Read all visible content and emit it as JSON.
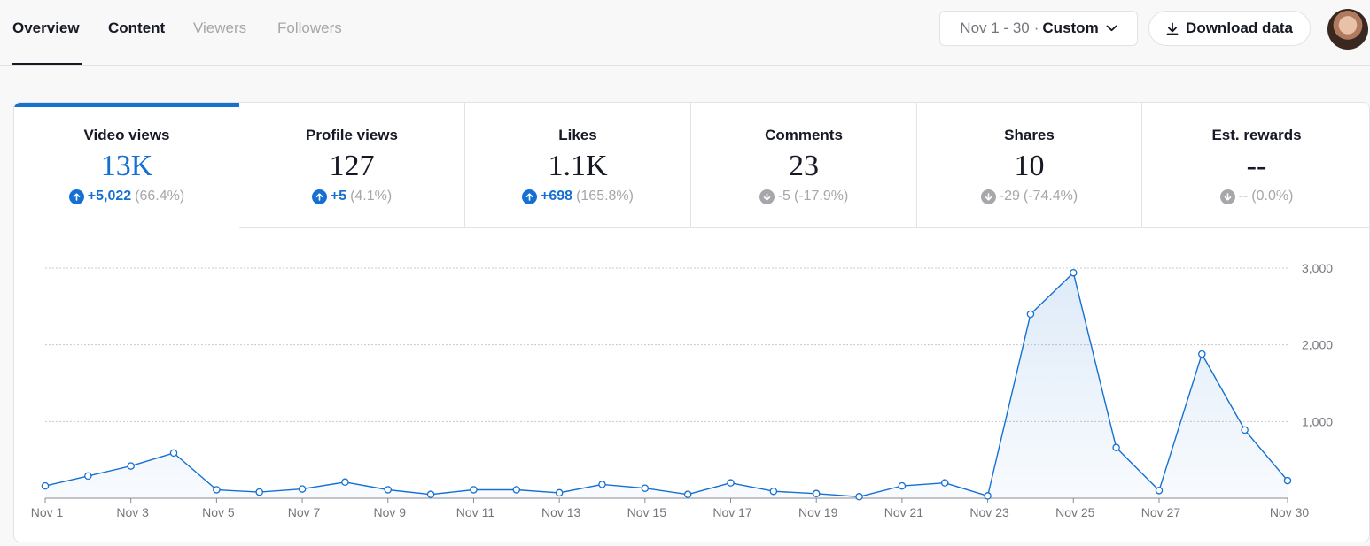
{
  "tabs": [
    {
      "label": "Overview",
      "state": "active"
    },
    {
      "label": "Content",
      "state": "normal"
    },
    {
      "label": "Viewers",
      "state": "muted"
    },
    {
      "label": "Followers",
      "state": "muted"
    }
  ],
  "date_range": {
    "dates": "Nov 1 - 30",
    "separator": "·",
    "mode": "Custom"
  },
  "download_label": "Download data",
  "metrics": [
    {
      "title": "Video views",
      "value": "13K",
      "change": "+5,022",
      "percent": "(66.4%)",
      "direction": "up",
      "active": true
    },
    {
      "title": "Profile views",
      "value": "127",
      "change": "+5",
      "percent": "(4.1%)",
      "direction": "up",
      "active": false
    },
    {
      "title": "Likes",
      "value": "1.1K",
      "change": "+698",
      "percent": "(165.8%)",
      "direction": "up",
      "active": false
    },
    {
      "title": "Comments",
      "value": "23",
      "change": "-5",
      "percent": "(-17.9%)",
      "direction": "down",
      "active": false
    },
    {
      "title": "Shares",
      "value": "10",
      "change": "-29",
      "percent": "(-74.4%)",
      "direction": "down",
      "active": false
    },
    {
      "title": "Est. rewards",
      "value": "--",
      "change": "--",
      "percent": "(0.0%)",
      "direction": "down",
      "active": false
    }
  ],
  "colors": {
    "accent": "#1570d1",
    "muted": "#a6a7ab",
    "text": "#161823"
  },
  "chart_data": {
    "type": "area",
    "x": [
      "Nov 1",
      "Nov 2",
      "Nov 3",
      "Nov 4",
      "Nov 5",
      "Nov 6",
      "Nov 7",
      "Nov 8",
      "Nov 9",
      "Nov 10",
      "Nov 11",
      "Nov 12",
      "Nov 13",
      "Nov 14",
      "Nov 15",
      "Nov 16",
      "Nov 17",
      "Nov 18",
      "Nov 19",
      "Nov 20",
      "Nov 21",
      "Nov 22",
      "Nov 23",
      "Nov 24",
      "Nov 25",
      "Nov 26",
      "Nov 27",
      "Nov 28",
      "Nov 29",
      "Nov 30"
    ],
    "values": [
      160,
      290,
      420,
      590,
      110,
      80,
      120,
      210,
      110,
      50,
      110,
      110,
      70,
      180,
      130,
      50,
      200,
      90,
      60,
      20,
      160,
      200,
      30,
      2400,
      2940,
      660,
      100,
      1880,
      890,
      230
    ],
    "x_tick_labels": [
      "Nov 1",
      "Nov 3",
      "Nov 5",
      "Nov 7",
      "Nov 9",
      "Nov 11",
      "Nov 13",
      "Nov 15",
      "Nov 17",
      "Nov 19",
      "Nov 21",
      "Nov 23",
      "Nov 25",
      "Nov 27",
      "Nov 30"
    ],
    "y_ticks": [
      1000,
      2000,
      3000
    ],
    "y_tick_labels": [
      "1,000",
      "2,000",
      "3,000"
    ],
    "ylim": [
      0,
      3000
    ],
    "grid": true,
    "axis_position": "right",
    "line_color": "#1570d1"
  }
}
